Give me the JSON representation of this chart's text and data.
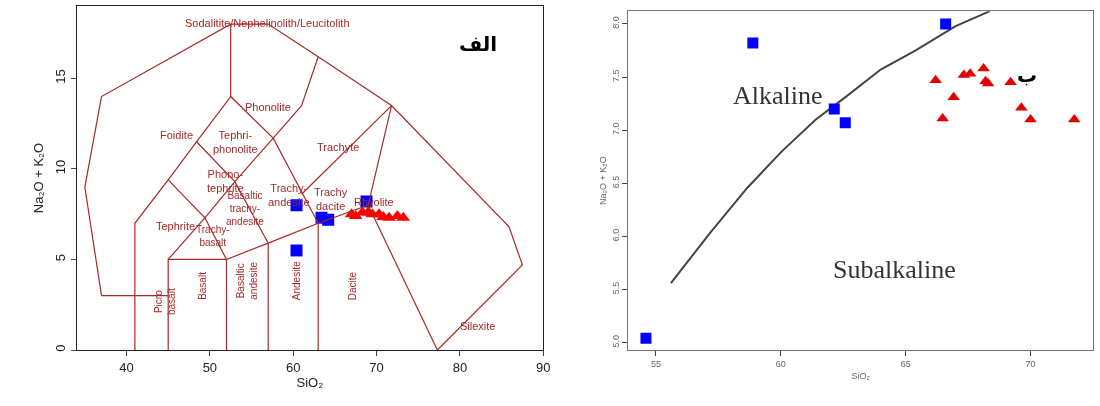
{
  "chart_data": [
    {
      "type": "scatter",
      "title": "الف",
      "xlabel": "SiO₂",
      "ylabel": "Na₂O + K₂O",
      "xlim": [
        34,
        90
      ],
      "ylim": [
        0,
        19
      ],
      "xticks": [
        40,
        50,
        60,
        70,
        80,
        90
      ],
      "yticks": [
        0,
        5,
        10,
        15
      ],
      "series": [
        {
          "color": "#ff0000",
          "marker": "triangle",
          "x": [
            67,
            67.5,
            68.3,
            69,
            69.5,
            70.3,
            70.8,
            71.5,
            72.5,
            73.2
          ],
          "values": [
            7.5,
            7.4,
            7.6,
            7.6,
            7.5,
            7.5,
            7.35,
            7.3,
            7.4,
            7.3
          ]
        },
        {
          "color": "#0000ff",
          "marker": "square",
          "x": [
            60.4,
            60.4,
            63.4,
            64.2,
            68.8
          ],
          "values": [
            8.0,
            5.5,
            7.3,
            7.2,
            8.2
          ]
        },
        {
          "type": "line",
          "color": "#a52a2a",
          "x": [
            45,
            37,
            35,
            37,
            52.5,
            57,
            63,
            71.8,
            85.9,
            87.5,
            77.3
          ],
          "values": [
            3,
            3,
            9,
            14,
            18,
            18,
            16.2,
            13.5,
            6.8,
            4.7,
            0
          ]
        },
        {
          "type": "line",
          "color": "#a52a2a",
          "x": [
            41,
            41,
            45,
            48.4,
            52.5,
            52.5
          ],
          "values": [
            0,
            7,
            9.4,
            11.5,
            14,
            18
          ]
        },
        {
          "type": "line",
          "color": "#a52a2a",
          "x": [
            45,
            45,
            52,
            52
          ],
          "values": [
            0,
            5,
            5,
            0
          ]
        },
        {
          "type": "line",
          "color": "#a52a2a",
          "x": [
            45,
            49.4,
            53,
            57.6,
            61,
            63
          ],
          "values": [
            5,
            7.3,
            9.3,
            11.7,
            13.5,
            16.2
          ]
        },
        {
          "type": "line",
          "color": "#a52a2a",
          "x": [
            52,
            57,
            63,
            69,
            71.8
          ],
          "values": [
            5,
            5.9,
            7,
            8,
            13.5
          ]
        },
        {
          "type": "line",
          "color": "#a52a2a",
          "x": [
            57,
            57
          ],
          "values": [
            0,
            5.9
          ]
        },
        {
          "type": "line",
          "color": "#a52a2a",
          "x": [
            63,
            63
          ],
          "values": [
            0,
            7
          ]
        },
        {
          "type": "line",
          "color": "#a52a2a",
          "x": [
            45,
            49.4,
            52
          ],
          "values": [
            9.4,
            7.3,
            5
          ]
        },
        {
          "type": "line",
          "color": "#a52a2a",
          "x": [
            48.4,
            53,
            57
          ],
          "values": [
            11.5,
            9.3,
            5.9
          ]
        },
        {
          "type": "line",
          "color": "#a52a2a",
          "x": [
            52.5,
            57.6,
            63
          ],
          "values": [
            14,
            11.7,
            7
          ]
        },
        {
          "type": "line",
          "color": "#a52a2a",
          "x": [
            61,
            71.8
          ],
          "values": [
            8.6,
            13.5
          ]
        },
        {
          "type": "line",
          "color": "#a52a2a",
          "x": [
            69,
            77.3
          ],
          "values": [
            8,
            0
          ]
        }
      ],
      "annotations": [
        "Sodalitite/Nephelinolith/Leucitolith",
        "Foidite",
        "Phonolite",
        "Tephri-\nphonolite",
        "Trachyte",
        "Phono-\ntephrite",
        "Trachy-\nandesite",
        "Trachy\ndacite",
        "Rhyolite",
        "Tephrite",
        "Basaltic\ntrachy-\nandesite",
        "Trachy-\nbasalt",
        "Picro\nbasalt",
        "Basalt",
        "Basaltic\nandesite",
        "Andesite",
        "Dacite",
        "Silexite"
      ]
    },
    {
      "type": "scatter",
      "title": "ب",
      "xlabel": "SiO₂",
      "ylabel": "Na₂O + K₂O",
      "xlim": [
        53.9,
        72.5
      ],
      "ylim": [
        4.93,
        8.12
      ],
      "xticks": [
        55,
        60,
        65,
        70
      ],
      "yticks": [
        {
          "value": 5,
          "label": "5.0"
        },
        5.5,
        {
          "value": 6,
          "label": "6.0"
        },
        6.5,
        {
          "value": 7,
          "label": "7.0"
        },
        7.5,
        {
          "value": 8,
          "label": "8.0"
        }
      ],
      "series": [
        {
          "type": "line",
          "color": "#444444",
          "x": [
            55.6,
            57.16,
            58.67,
            60.04,
            61.4,
            62.64,
            64.0,
            65.4,
            67.0,
            68.37
          ],
          "values": [
            5.56,
            6.03,
            6.46,
            6.8,
            7.1,
            7.32,
            7.57,
            7.75,
            7.98,
            8.12
          ]
        },
        {
          "color": "#0000ff",
          "marker": "square",
          "x": [
            54.6,
            58.88,
            62.14,
            62.58,
            66.6
          ],
          "values": [
            5.04,
            7.82,
            7.2,
            7.07,
            8.0
          ]
        },
        {
          "color": "#e00000",
          "marker": "triangle",
          "x": [
            66.2,
            66.48,
            66.92,
            67.33,
            67.58,
            68.12,
            68.2,
            68.3,
            69.2,
            69.63,
            70.0,
            71.75
          ],
          "values": [
            7.47,
            7.11,
            7.31,
            7.52,
            7.53,
            7.58,
            7.46,
            7.44,
            7.45,
            7.21,
            7.1,
            7.1
          ]
        }
      ],
      "annotations": [
        "Alkaline",
        "Subalkaline"
      ]
    }
  ]
}
